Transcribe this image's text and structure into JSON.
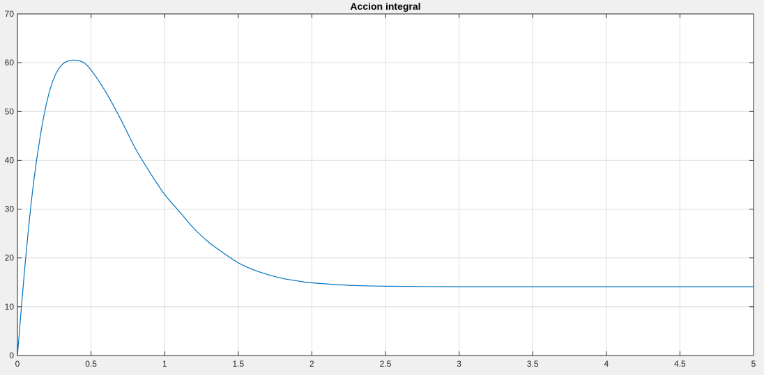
{
  "chart_data": {
    "type": "line",
    "title": "Accion integral",
    "xlabel": "",
    "ylabel": "",
    "xlim": [
      0,
      5
    ],
    "ylim": [
      0,
      70
    ],
    "grid": true,
    "x_ticks": [
      "0",
      "0.5",
      "1",
      "1.5",
      "2",
      "2.5",
      "3",
      "3.5",
      "4",
      "4.5",
      "5"
    ],
    "y_ticks": [
      "0",
      "10",
      "20",
      "30",
      "40",
      "50",
      "60",
      "70"
    ],
    "series": [
      {
        "color": "#0072bd",
        "x": [
          0,
          0.05,
          0.1,
          0.15,
          0.2,
          0.25,
          0.3,
          0.35,
          0.4,
          0.45,
          0.5,
          0.6,
          0.7,
          0.8,
          0.9,
          1.0,
          1.1,
          1.2,
          1.3,
          1.4,
          1.5,
          1.6,
          1.7,
          1.8,
          1.9,
          2.0,
          2.25,
          2.5,
          3.0,
          3.5,
          4.0,
          4.5,
          5.0
        ],
        "y": [
          0,
          18,
          33,
          44,
          52,
          57,
          59.5,
          60.4,
          60.5,
          60,
          58.5,
          54,
          48.5,
          42.5,
          37.5,
          33,
          29.5,
          26,
          23.2,
          21,
          19,
          17.6,
          16.6,
          15.8,
          15.3,
          14.9,
          14.4,
          14.2,
          14.1,
          14.1,
          14.1,
          14.1,
          14.1
        ]
      }
    ],
    "colors": {
      "figure_bg": "#f0f0f0",
      "axes_bg": "#ffffff",
      "grid": "#dcdcdc",
      "axis": "#262626"
    }
  }
}
